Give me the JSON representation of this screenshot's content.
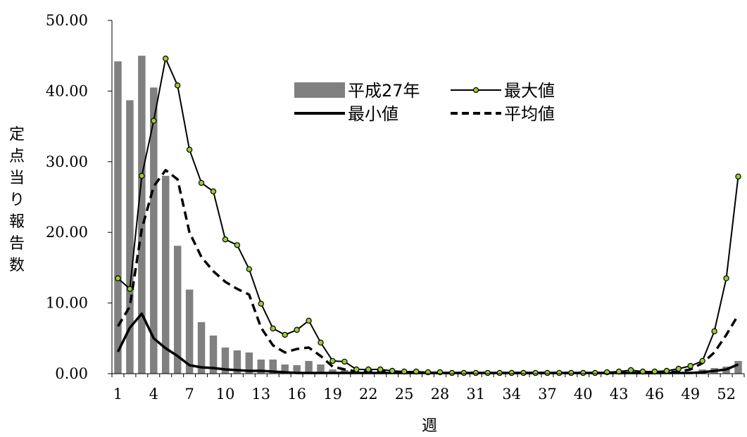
{
  "chart_data": {
    "type": "bar",
    "title": "",
    "xlabel": "週",
    "ylabel": "定点当り報告数",
    "ylim": [
      0,
      50
    ],
    "yticks": [
      "0.00",
      "10.00",
      "20.00",
      "30.00",
      "40.00",
      "50.00"
    ],
    "xticks": [
      "1",
      "4",
      "7",
      "10",
      "13",
      "16",
      "19",
      "22",
      "25",
      "28",
      "31",
      "34",
      "37",
      "40",
      "43",
      "46",
      "49",
      "52"
    ],
    "x": [
      1,
      2,
      3,
      4,
      5,
      6,
      7,
      8,
      9,
      10,
      11,
      12,
      13,
      14,
      15,
      16,
      17,
      18,
      19,
      20,
      21,
      22,
      23,
      24,
      25,
      26,
      27,
      28,
      29,
      30,
      31,
      32,
      33,
      34,
      35,
      36,
      37,
      38,
      39,
      40,
      41,
      42,
      43,
      44,
      45,
      46,
      47,
      48,
      49,
      50,
      51,
      52,
      53
    ],
    "legend_position": "top-center",
    "series": [
      {
        "name": "平成27年",
        "kind": "bar",
        "color": "#808080",
        "values": [
          44.2,
          38.7,
          45.0,
          40.5,
          28.0,
          18.1,
          11.9,
          7.3,
          5.4,
          3.7,
          3.3,
          3.0,
          2.0,
          2.0,
          1.3,
          1.2,
          1.8,
          1.3,
          0.6,
          0.5,
          0.3,
          0.2,
          0.2,
          0.1,
          0.1,
          0.1,
          0.1,
          0.1,
          0.1,
          0.1,
          0.1,
          0.1,
          0.1,
          0.1,
          0.1,
          0.1,
          0.1,
          0.1,
          0.1,
          0.1,
          0.1,
          0.1,
          0.1,
          0.1,
          0.1,
          0.1,
          0.2,
          0.2,
          0.3,
          0.6,
          0.8,
          1.0,
          1.8
        ]
      },
      {
        "name": "最大値",
        "kind": "line-marker",
        "color": "#000000",
        "marker_color": "#9acd32",
        "values": [
          13.5,
          12.0,
          28.0,
          35.8,
          44.6,
          40.8,
          31.7,
          27.0,
          25.8,
          19.0,
          18.2,
          14.8,
          9.9,
          6.4,
          5.5,
          6.2,
          7.5,
          4.4,
          1.8,
          1.7,
          0.6,
          0.6,
          0.6,
          0.4,
          0.3,
          0.3,
          0.2,
          0.2,
          0.1,
          0.1,
          0.1,
          0.1,
          0.1,
          0.1,
          0.1,
          0.1,
          0.1,
          0.1,
          0.1,
          0.1,
          0.1,
          0.2,
          0.3,
          0.5,
          0.3,
          0.3,
          0.4,
          0.7,
          1.1,
          1.8,
          6.0,
          13.5,
          27.9
        ]
      },
      {
        "name": "最小値",
        "kind": "line",
        "color": "#000000",
        "values": [
          3.1,
          6.5,
          8.5,
          5.0,
          3.6,
          2.5,
          1.2,
          0.9,
          0.8,
          0.6,
          0.5,
          0.4,
          0.4,
          0.3,
          0.2,
          0.1,
          0.1,
          0.1,
          0.1,
          0.1,
          0.1,
          0.1,
          0.1,
          0.1,
          0.1,
          0.1,
          0.1,
          0.1,
          0.1,
          0.1,
          0.1,
          0.1,
          0.1,
          0.1,
          0.1,
          0.1,
          0.1,
          0.1,
          0.1,
          0.1,
          0.1,
          0.1,
          0.1,
          0.1,
          0.1,
          0.1,
          0.1,
          0.1,
          0.1,
          0.2,
          0.4,
          0.6,
          1.3
        ]
      },
      {
        "name": "平均値",
        "kind": "dashed-line",
        "color": "#000000",
        "values": [
          6.7,
          9.5,
          20.5,
          26.5,
          28.8,
          27.5,
          20.0,
          16.5,
          14.5,
          13.0,
          12.0,
          11.2,
          6.5,
          4.0,
          3.0,
          3.5,
          3.7,
          2.5,
          1.0,
          0.6,
          0.3,
          0.3,
          0.3,
          0.2,
          0.2,
          0.2,
          0.1,
          0.1,
          0.1,
          0.1,
          0.1,
          0.1,
          0.1,
          0.1,
          0.1,
          0.1,
          0.1,
          0.1,
          0.1,
          0.1,
          0.1,
          0.1,
          0.1,
          0.1,
          0.1,
          0.1,
          0.2,
          0.3,
          0.6,
          1.5,
          3.0,
          5.5,
          8.3
        ]
      }
    ]
  }
}
